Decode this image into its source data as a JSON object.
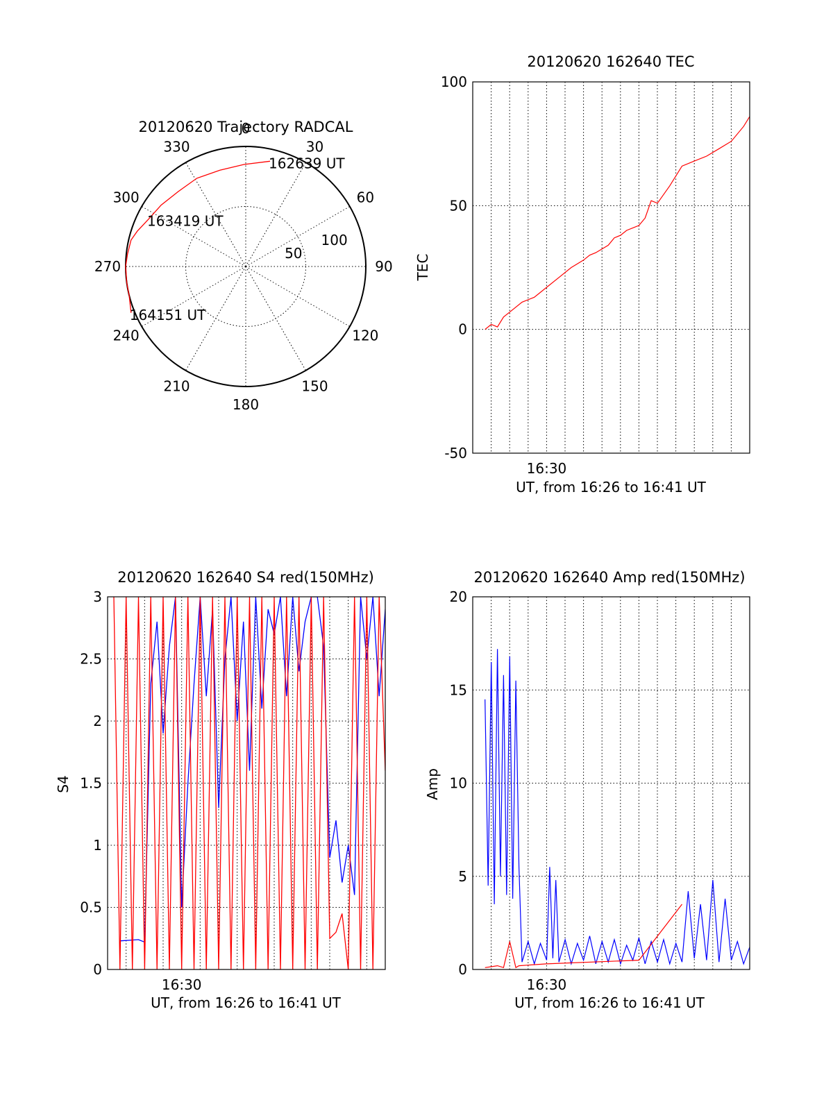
{
  "colors": {
    "red": "#ff0000",
    "blue": "#0000ff",
    "axis": "#000000",
    "background": "#ffffff"
  },
  "chart_data": [
    {
      "id": "polar",
      "type": "scatter",
      "subtype": "polar-trajectory",
      "title": "20120620 Trajectory RADCAL",
      "angle_labels": [
        "0",
        "30",
        "60",
        "90",
        "120",
        "150",
        "180",
        "210",
        "240",
        "270",
        "300",
        "330"
      ],
      "angles": [
        0,
        30,
        60,
        90,
        120,
        150,
        180,
        210,
        240,
        270,
        300,
        330
      ],
      "radial_labels": [
        "50",
        "100"
      ],
      "radial_values": [
        50,
        100
      ],
      "radial_max": 100,
      "grid": true,
      "series": [
        {
          "color": "#ff0000",
          "points": [
            {
              "az": 13,
              "r": 90
            },
            {
              "az": 359,
              "r": 85
            },
            {
              "az": 345,
              "r": 83
            },
            {
              "az": 331,
              "r": 84
            },
            {
              "az": 318,
              "r": 84
            },
            {
              "az": 306,
              "r": 87
            },
            {
              "az": 296,
              "r": 90
            },
            {
              "az": 288,
              "r": 95
            },
            {
              "az": 283,
              "r": 98
            },
            {
              "az": 276,
              "r": 99
            },
            {
              "az": 270,
              "r": 100
            },
            {
              "az": 262,
              "r": 100
            },
            {
              "az": 256,
              "r": 100
            },
            {
              "az": 248,
              "r": 103
            }
          ]
        }
      ],
      "annotations": [
        {
          "text": "162639 UT",
          "az": 13,
          "r": 90
        },
        {
          "text": "163419 UT",
          "az": 296,
          "r": 90
        },
        {
          "text": "164151 UT",
          "az": 248,
          "r": 103
        }
      ]
    },
    {
      "id": "tec",
      "type": "line",
      "title": "20120620 162640 TEC",
      "xlabel": "UT, from 16:26 to 16:41 UT",
      "ylabel": "TEC",
      "xlim": [
        16.4333,
        16.6833
      ],
      "ylim": [
        -50,
        100
      ],
      "yticks": [
        -50,
        0,
        50,
        100
      ],
      "xtick_labels": [
        {
          "value": 16.5,
          "label": "16:30"
        }
      ],
      "grid": true,
      "series": [
        {
          "color": "#ff0000",
          "x": [
            16.4444,
            16.45,
            16.4556,
            16.4611,
            16.4667,
            16.4778,
            16.4889,
            16.5,
            16.5111,
            16.5222,
            16.5333,
            16.5389,
            16.5444,
            16.5556,
            16.5611,
            16.5667,
            16.5722,
            16.5778,
            16.5833,
            16.5889,
            16.5944,
            16.6,
            16.6111,
            16.6222,
            16.6333,
            16.6444,
            16.6556,
            16.6667,
            16.6778,
            16.6833
          ],
          "values": [
            0,
            2,
            1,
            5,
            7,
            11,
            13,
            17,
            21,
            25,
            28,
            30,
            31,
            34,
            37,
            38,
            40,
            41,
            42,
            45,
            52,
            51,
            58,
            66,
            68,
            70,
            73,
            76,
            82,
            86
          ]
        }
      ]
    },
    {
      "id": "s4",
      "type": "line",
      "title": "20120620 162640 S4 red(150MHz)",
      "xlabel": "UT, from 16:26 to 16:41 UT",
      "ylabel": "S4",
      "xlim": [
        16.4333,
        16.6833
      ],
      "ylim": [
        0,
        3
      ],
      "yticks": [
        0,
        0.5,
        1,
        1.5,
        2,
        2.5,
        3
      ],
      "ytick_labels": [
        "0",
        "0.5",
        "1",
        "1.5",
        "2",
        "2.5",
        "3"
      ],
      "xtick_labels": [
        {
          "value": 16.5,
          "label": "16:30"
        }
      ],
      "grid": true,
      "series": [
        {
          "color": "#0000ff",
          "x": [
            16.4444,
            16.4611,
            16.4667,
            16.4722,
            16.4778,
            16.4833,
            16.4889,
            16.4944,
            16.5,
            16.5056,
            16.5111,
            16.5167,
            16.5222,
            16.5278,
            16.5333,
            16.5389,
            16.5444,
            16.55,
            16.5556,
            16.5611,
            16.5667,
            16.5722,
            16.5778,
            16.5833,
            16.5889,
            16.5944,
            16.6,
            16.6056,
            16.6111,
            16.6167,
            16.6222,
            16.6278,
            16.6333,
            16.6389,
            16.6444,
            16.65,
            16.6556,
            16.6611,
            16.6667,
            16.6722,
            16.6778,
            16.6833
          ],
          "values": [
            0.23,
            0.24,
            0.22,
            2.3,
            2.8,
            1.9,
            2.6,
            3.0,
            0.5,
            1.5,
            2.3,
            3.0,
            2.2,
            2.9,
            1.3,
            2.5,
            3.0,
            2.0,
            2.8,
            1.6,
            3.0,
            2.1,
            2.9,
            2.7,
            3.0,
            2.2,
            3.0,
            2.4,
            2.8,
            3.0,
            3.0,
            2.6,
            0.9,
            1.2,
            0.7,
            1.0,
            0.6,
            3.0,
            2.5,
            3.0,
            2.2,
            2.9
          ]
        },
        {
          "color": "#ff0000",
          "x": [
            16.4389,
            16.4444,
            16.45,
            16.4556,
            16.4611,
            16.4667,
            16.4722,
            16.4778,
            16.4833,
            16.4889,
            16.4944,
            16.5,
            16.5056,
            16.5111,
            16.5167,
            16.5222,
            16.5278,
            16.5333,
            16.5389,
            16.5444,
            16.55,
            16.5556,
            16.5611,
            16.5667,
            16.5722,
            16.5778,
            16.5833,
            16.5889,
            16.5944,
            16.6,
            16.6056,
            16.6111,
            16.6167,
            16.6222,
            16.6278,
            16.6333,
            16.6389,
            16.6444,
            16.65,
            16.6556,
            16.6611,
            16.6667,
            16.6722,
            16.6778,
            16.6833
          ],
          "values": [
            3.0,
            0.0,
            3.0,
            0.0,
            3.0,
            0.0,
            3.0,
            0.0,
            3.0,
            0.0,
            3.0,
            0.0,
            3.0,
            0.0,
            3.0,
            0.0,
            3.0,
            0.0,
            3.0,
            0.0,
            3.0,
            0.0,
            3.0,
            0.0,
            3.0,
            0.0,
            3.0,
            0.0,
            3.0,
            0.0,
            3.0,
            0.0,
            3.0,
            0.0,
            3.0,
            0.25,
            0.3,
            0.45,
            0.0,
            3.0,
            0.0,
            3.0,
            0.0,
            3.0,
            1.6
          ]
        }
      ]
    },
    {
      "id": "amp",
      "type": "line",
      "title": "20120620 162640 Amp red(150MHz)",
      "xlabel": "UT, from 16:26 to 16:41 UT",
      "ylabel": "Amp",
      "xlim": [
        16.4333,
        16.6833
      ],
      "ylim": [
        0,
        20
      ],
      "yticks": [
        0,
        5,
        10,
        15,
        20
      ],
      "xtick_labels": [
        {
          "value": 16.5,
          "label": "16:30"
        }
      ],
      "grid": true,
      "series": [
        {
          "color": "#0000ff",
          "x": [
            16.4444,
            16.4472,
            16.45,
            16.4528,
            16.4556,
            16.4583,
            16.4611,
            16.4639,
            16.4667,
            16.4694,
            16.4722,
            16.475,
            16.4778,
            16.4833,
            16.4889,
            16.4944,
            16.5,
            16.5028,
            16.5056,
            16.5083,
            16.5111,
            16.5167,
            16.5222,
            16.5278,
            16.5333,
            16.5389,
            16.5444,
            16.55,
            16.5556,
            16.5611,
            16.5667,
            16.5722,
            16.5778,
            16.5833,
            16.5889,
            16.5944,
            16.6,
            16.6056,
            16.6111,
            16.6167,
            16.6222,
            16.6278,
            16.6333,
            16.6389,
            16.6444,
            16.65,
            16.6556,
            16.6611,
            16.6667,
            16.6722,
            16.6778,
            16.6833
          ],
          "values": [
            14.5,
            4.5,
            16.5,
            3.5,
            17.2,
            5.0,
            15.8,
            4.0,
            16.8,
            3.8,
            15.5,
            5.5,
            0.4,
            1.5,
            0.3,
            1.4,
            0.5,
            5.5,
            0.6,
            4.8,
            0.4,
            1.6,
            0.3,
            1.4,
            0.5,
            1.8,
            0.3,
            1.5,
            0.4,
            1.6,
            0.3,
            1.3,
            0.5,
            1.7,
            0.3,
            1.5,
            0.4,
            1.6,
            0.3,
            1.4,
            0.4,
            4.2,
            0.6,
            3.5,
            0.5,
            4.8,
            0.4,
            3.8,
            0.5,
            1.5,
            0.3,
            1.2
          ]
        },
        {
          "color": "#ff0000",
          "x": [
            16.4444,
            16.45,
            16.4556,
            16.4611,
            16.4667,
            16.4722,
            16.475,
            16.5,
            16.5833,
            16.6222
          ],
          "values": [
            0.1,
            0.15,
            0.2,
            0.1,
            1.5,
            0.1,
            0.2,
            0.3,
            0.5,
            3.5
          ]
        }
      ]
    }
  ]
}
